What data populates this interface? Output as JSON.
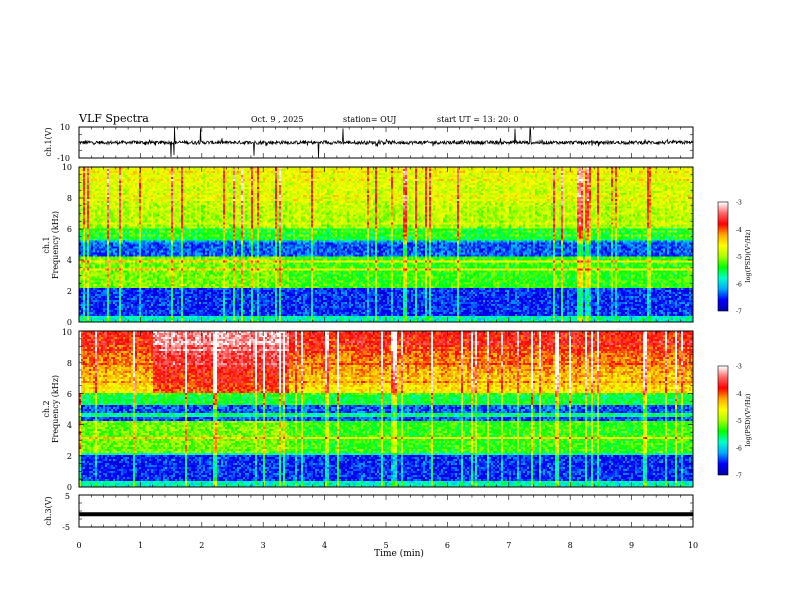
{
  "header": {
    "title": "VLF Spectra",
    "date": "Oct. 9 , 2025",
    "station": "station= OUJ",
    "start_ut": "start UT = 13: 20: 0"
  },
  "panels": {
    "ch1_wave": {
      "ylabel": "ch.1(V)",
      "ticks": [
        "10",
        "-10"
      ]
    },
    "ch1_spec": {
      "ylabel_1": "ch.1",
      "ylabel_2": "Frequency (kHz)",
      "ticks": [
        "0",
        "2",
        "4",
        "6",
        "8",
        "10"
      ]
    },
    "ch2_spec": {
      "ylabel_1": "ch.2",
      "ylabel_2": "Frequency (kHz)",
      "ticks": [
        "0",
        "2",
        "4",
        "6",
        "8",
        "10"
      ]
    },
    "ch3_wave": {
      "ylabel": "ch.3(V)",
      "ticks": [
        "5",
        "-5"
      ]
    }
  },
  "colorbar": {
    "label": "log(PSD)(V²/Hz)",
    "ticks": [
      "-3",
      "-4",
      "-5",
      "-6",
      "-7"
    ],
    "stops": [
      "#0000aa",
      "#0000ff",
      "#00aaff",
      "#00ffcc",
      "#00ff00",
      "#aaff00",
      "#ffff00",
      "#ffaa00",
      "#ff0000",
      "#ff6666",
      "#ffffff"
    ]
  },
  "colors": {
    "axis": "#000000",
    "trace": "#000000"
  },
  "chart_data": [
    {
      "type": "line",
      "panel": "ch1_wave",
      "xlim": [
        0,
        10
      ],
      "ylim": [
        -10,
        10
      ],
      "ylabel": "ch.1(V)",
      "series": [
        {
          "values_desc": "noise around ~0 V",
          "mean": 0,
          "spikes_at_min": [
            1.5,
            1.55,
            1.98,
            2.85,
            3.9,
            4.3,
            7.1,
            7.35
          ]
        }
      ]
    },
    {
      "type": "heatmap",
      "panel": "ch1_spec",
      "xlim": [
        0,
        10
      ],
      "ylim": [
        0,
        10
      ],
      "ylabel": "Frequency (kHz)",
      "zlim": [
        -7,
        -3
      ],
      "zlabel": "log(PSD)(V²/Hz)"
    },
    {
      "type": "heatmap",
      "panel": "ch2_spec",
      "xlim": [
        0,
        10
      ],
      "ylim": [
        0,
        10
      ],
      "ylabel": "Frequency (kHz)",
      "zlim": [
        -7,
        -3
      ],
      "zlabel": "log(PSD)(V²/Hz)"
    },
    {
      "type": "line",
      "panel": "ch3_wave",
      "xlim": [
        0,
        10
      ],
      "ylim": [
        -5,
        5
      ],
      "ylabel": "ch.3(V)",
      "series": [
        {
          "constant": -1
        }
      ]
    }
  ],
  "xaxis": {
    "label": "Time (min)",
    "ticks": [
      "0",
      "1",
      "2",
      "3",
      "4",
      "5",
      "6",
      "7",
      "8",
      "9",
      "10"
    ],
    "range": [
      0,
      10
    ]
  }
}
